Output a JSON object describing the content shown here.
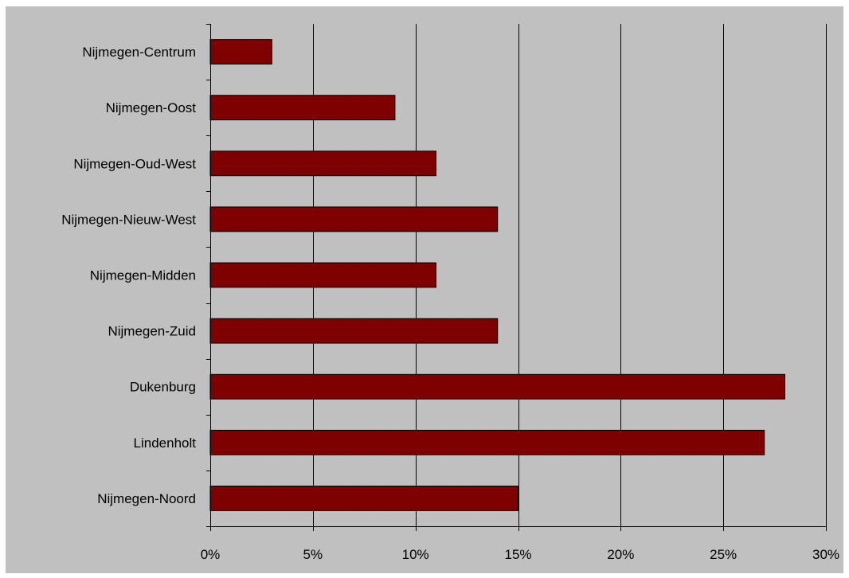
{
  "chart_data": {
    "type": "bar",
    "orientation": "horizontal",
    "categories": [
      "Nijmegen-Centrum",
      "Nijmegen-Oost",
      "Nijmegen-Oud-West",
      "Nijmegen-Nieuw-West",
      "Nijmegen-Midden",
      "Nijmegen-Zuid",
      "Dukenburg",
      "Lindenholt",
      "Nijmegen-Noord"
    ],
    "values": [
      3,
      9,
      11,
      14,
      11,
      14,
      28,
      27,
      15
    ],
    "value_unit": "%",
    "xlim": [
      0,
      30
    ],
    "x_ticks": [
      0,
      5,
      10,
      15,
      20,
      25,
      30
    ],
    "x_tick_labels": [
      "0%",
      "5%",
      "10%",
      "15%",
      "20%",
      "25%",
      "30%"
    ],
    "title": "",
    "xlabel": "",
    "ylabel": "",
    "grid": "vertical",
    "legend": "none",
    "colors": {
      "page_background": "#ffffff",
      "plot_background": "#c0c0c0",
      "bar_fill": "#7f0000",
      "bar_stroke": "#000000",
      "grid": "#000000",
      "text": "#000000"
    }
  }
}
